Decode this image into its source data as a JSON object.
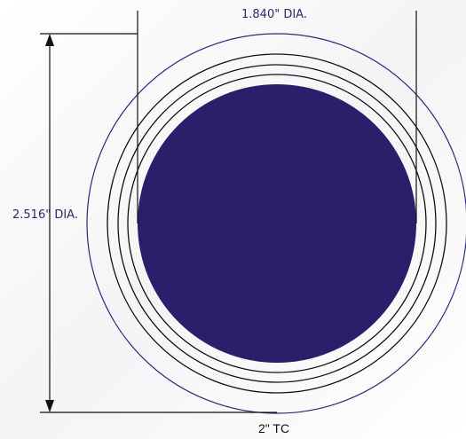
{
  "drawing": {
    "inner_diameter_label": "1.840\" DIA.",
    "outer_diameter_label": "2.516\" DIA.",
    "caption": "2\" TC"
  },
  "colors": {
    "inner_fill": "#2a1f6a",
    "outer_ring": "#2a2a7a",
    "line": "#111111"
  }
}
